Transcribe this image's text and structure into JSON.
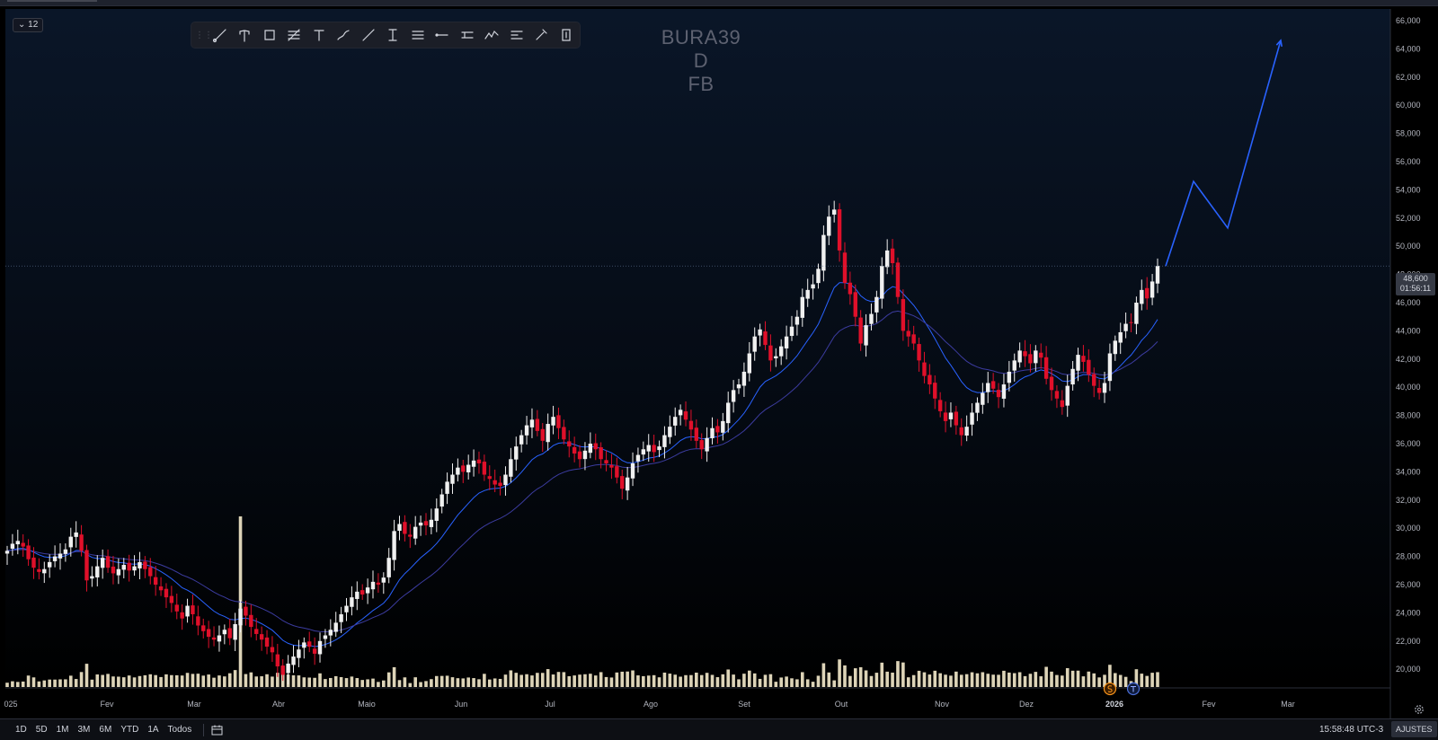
{
  "window": {
    "interval_badge": "12"
  },
  "drawing_toolbar": {
    "tools": [
      "trend-line-icon",
      "pitchfork-icon",
      "rectangle-icon",
      "fib-retracement-icon",
      "text-icon",
      "brush-icon",
      "ray-icon",
      "measure-icon",
      "parallel-channel-icon",
      "horizontal-ray-icon",
      "price-range-icon",
      "pattern-icon",
      "long-position-icon",
      "eyedropper-icon",
      "price-label-icon"
    ]
  },
  "watermark": {
    "symbol": "BURA39",
    "interval": "D",
    "exchange": "FB"
  },
  "price_axis": {
    "labels": [
      "66,000",
      "64,000",
      "62,000",
      "60,000",
      "58,000",
      "56,000",
      "54,000",
      "52,000",
      "50,000",
      "48,000",
      "46,000",
      "44,000",
      "42,000",
      "40,000",
      "38,000",
      "36,000",
      "34,000",
      "32,000",
      "30,000",
      "28,000",
      "26,000",
      "24,000",
      "22,000",
      "20,000"
    ],
    "last_price": "48,600",
    "countdown": "01:56:11"
  },
  "time_axis": {
    "labels": [
      "025",
      "Fev",
      "Mar",
      "Abr",
      "Maio",
      "Jun",
      "Jul",
      "Ago",
      "Set",
      "Out",
      "Nov",
      "Dez",
      "2026",
      "Fev",
      "Mar"
    ]
  },
  "range_buttons": [
    "1D",
    "5D",
    "1M",
    "3M",
    "6M",
    "YTD",
    "1A",
    "Todos"
  ],
  "clock": "15:58:48 UTC-3",
  "settings_label": "AJUSTES",
  "colors": {
    "background_top": "#0a1628",
    "background_bottom": "#000000",
    "up_candle": "#f0f0f0",
    "down_candle": "#e0102a",
    "volume": "#f0e6c8",
    "ma_fast": "#2962ff",
    "ma_slow": "#3c3ca0",
    "projection": "#2962ff"
  },
  "chart_data": {
    "type": "candlestick",
    "title": "",
    "ylim": [
      19000,
      67000
    ],
    "last_price": 48.6,
    "closes_by_month": [
      {
        "month": "Jan 2025",
        "close": [
          28.4,
          28.9,
          29.1,
          28.7,
          27.8,
          27.2,
          26.9,
          27.1,
          27.6,
          28.0,
          28.2,
          28.5,
          29.4,
          29.7,
          28.4,
          26.3
        ]
      },
      {
        "month": "Fev",
        "close": [
          26.6,
          27.3,
          27.9,
          27.2,
          26.8,
          27.1,
          27.4,
          27.0,
          27.3,
          27.6,
          27.1,
          26.6,
          26.0,
          25.6,
          25.1,
          24.7,
          24.1,
          23.6
        ]
      },
      {
        "month": "Mar",
        "close": [
          24.5,
          23.9,
          23.1,
          22.7,
          22.3,
          22.1,
          22.4,
          22.8,
          22.2,
          23.2,
          24.3,
          23.8,
          23.0,
          22.5,
          22.1,
          21.6,
          21.2
        ]
      },
      {
        "month": "Abr",
        "close": [
          20.2,
          19.6,
          20.4,
          20.9,
          21.4,
          21.9,
          21.6,
          21.1,
          22.0,
          22.4,
          22.8,
          23.3,
          23.9,
          24.5,
          25.1,
          25.5,
          25.3,
          25.8,
          26.2,
          26.0
        ]
      },
      {
        "month": "Maio",
        "close": [
          26.5,
          27.9,
          29.8,
          30.3,
          29.6,
          29.4,
          30.1,
          30.4,
          30.2,
          30.6,
          31.4,
          32.4,
          33.3,
          33.8,
          34.3,
          34.0,
          34.5,
          34.8,
          34.6,
          33.8
        ]
      },
      {
        "month": "Jun/Jul",
        "close": [
          33.5,
          33.1,
          33.0,
          33.8,
          34.9,
          35.8,
          36.6,
          37.3,
          37.7,
          36.9,
          36.2,
          37.4,
          37.9,
          37.1,
          36.3,
          35.8,
          35.3,
          34.9,
          35.5,
          36.0,
          35.6,
          34.9,
          34.6,
          34.3,
          33.6,
          32.8,
          33.6,
          34.6,
          35.2,
          35.6
        ]
      },
      {
        "month": "Ago/Set",
        "close": [
          35.9,
          35.4,
          35.8,
          36.6,
          37.2,
          37.9,
          38.4,
          37.7,
          37.0,
          36.2,
          35.6,
          36.4,
          37.1,
          36.8,
          37.6,
          38.9,
          39.8,
          40.2,
          41.1,
          42.4,
          43.6,
          44.1,
          43.0,
          41.9,
          42.2,
          42.9,
          43.6,
          44.3,
          45.0,
          46.4,
          46.9
        ]
      },
      {
        "month": "Out",
        "close": [
          47.3,
          48.4,
          50.8,
          52.1,
          52.6,
          49.7,
          47.4,
          46.6,
          45.0,
          43.1,
          44.4,
          45.2,
          46.4,
          48.6,
          49.7,
          48.8,
          46.4,
          44.0,
          43.6,
          43.1
        ]
      },
      {
        "month": "Nov",
        "close": [
          41.9,
          40.8,
          40.2,
          39.2,
          38.3,
          37.6,
          38.2,
          37.3,
          36.6,
          37.2,
          38.2,
          38.9,
          39.6,
          40.3,
          39.9,
          39.3,
          40.2,
          41.1
        ]
      },
      {
        "month": "Dez",
        "close": [
          41.9,
          42.6,
          42.2,
          41.7,
          42.6,
          42.1,
          40.6,
          39.8,
          39.2,
          38.6,
          40.1,
          41.3,
          42.3,
          41.8,
          40.9,
          40.1,
          39.6,
          40.3,
          42.4,
          43.3,
          43.9,
          44.5
        ]
      },
      {
        "month": "Jan 2026",
        "close": [
          44.6,
          46.0,
          46.9,
          46.3,
          47.5,
          48.6
        ]
      }
    ],
    "moving_averages": [
      {
        "name": "fast",
        "values": "smoothed closes (short period)"
      },
      {
        "name": "slow",
        "values": "smoothed closes (long period)"
      }
    ],
    "projection": [
      {
        "time": "Jan 2026",
        "price": 48.6
      },
      {
        "time": "Fev 2026",
        "price": 54.6
      },
      {
        "time": "Fev 2026",
        "price": 51.3
      },
      {
        "time": "Mar 2026",
        "price": 64.6
      }
    ],
    "volume_spike_at": "Mar 2025",
    "grid": false,
    "legend": "none"
  }
}
